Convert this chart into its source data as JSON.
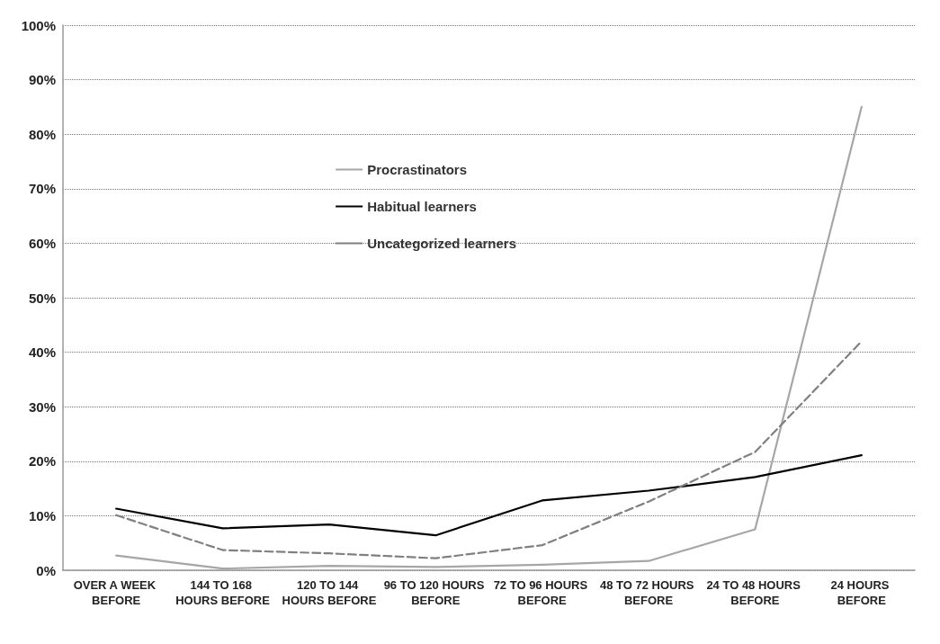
{
  "chart_data": {
    "type": "line",
    "categories": [
      "OVER A WEEK BEFORE",
      "144 TO 168 HOURS BEFORE",
      "120 TO 144 HOURS BEFORE",
      "96 TO 120 HOURS BEFORE",
      "72 TO 96 HOURS BEFORE",
      "48 TO 72 HOURS BEFORE",
      "24 TO 48 HOURS BEFORE",
      "24 HOURS BEFORE"
    ],
    "series": [
      {
        "name": "Procrastinators",
        "color": "#a6a6a6",
        "line_style": "solid",
        "values": [
          2.7,
          0.3,
          0.8,
          0.6,
          1.0,
          1.7,
          7.5,
          85.0
        ]
      },
      {
        "name": "Habitual learners",
        "color": "#000000",
        "line_style": "solid",
        "values": [
          11.3,
          7.7,
          8.4,
          6.4,
          12.8,
          14.6,
          17.1,
          21.1
        ]
      },
      {
        "name": "Uncategorized learners",
        "color": "#808080",
        "line_style": "dashed",
        "values": [
          10.1,
          3.7,
          3.1,
          2.2,
          4.6,
          12.6,
          21.7,
          42.0
        ]
      }
    ],
    "ylim": [
      0,
      100
    ],
    "yticks": [
      {
        "value": 0,
        "label": "0%"
      },
      {
        "value": 10,
        "label": "10%"
      },
      {
        "value": 20,
        "label": "20%"
      },
      {
        "value": 30,
        "label": "30%"
      },
      {
        "value": 40,
        "label": "40%"
      },
      {
        "value": 50,
        "label": "50%"
      },
      {
        "value": 60,
        "label": "60%"
      },
      {
        "value": 70,
        "label": "70%"
      },
      {
        "value": 80,
        "label": "80%"
      },
      {
        "value": 90,
        "label": "90%"
      },
      {
        "value": 100,
        "label": "100%"
      }
    ],
    "grid": "y",
    "legend": "top left",
    "marker": "none"
  }
}
